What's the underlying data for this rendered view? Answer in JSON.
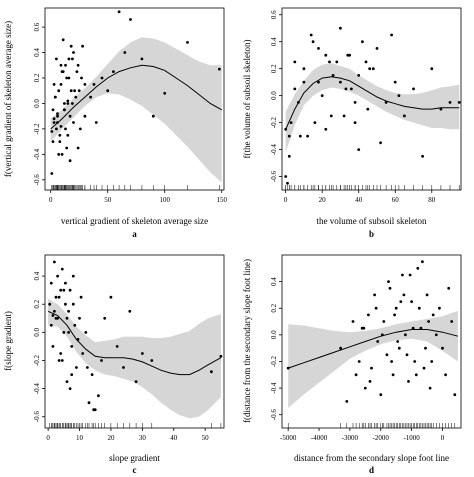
{
  "chart_data": [
    {
      "type": "line",
      "panel_label": "a",
      "xlabel": "vertical gradient of skeleton average size",
      "ylabel": "f(vertical gradient of skeleton average size)",
      "xlim": [
        -5,
        152
      ],
      "ylim": [
        -0.68,
        0.75
      ],
      "x_ticks": [
        0,
        50,
        100,
        150
      ],
      "y_ticks": [
        -0.6,
        -0.4,
        -0.2,
        0.0,
        0.2,
        0.4,
        0.6
      ],
      "tick_labels_x": [
        "0",
        "50",
        "100",
        "150"
      ],
      "tick_labels_y": [
        "-0.6",
        "-0.4",
        "-0.2",
        "0.0",
        "0.2",
        "0.4",
        "0.6"
      ],
      "smooth": {
        "x": [
          0,
          10,
          20,
          30,
          40,
          50,
          60,
          70,
          80,
          90,
          100,
          110,
          120,
          130,
          140,
          150
        ],
        "y": [
          -0.2,
          -0.12,
          -0.03,
          0.05,
          0.13,
          0.2,
          0.25,
          0.28,
          0.3,
          0.29,
          0.26,
          0.2,
          0.14,
          0.07,
          0.0,
          -0.05
        ],
        "lower": [
          -0.3,
          -0.2,
          -0.11,
          -0.02,
          0.05,
          0.08,
          0.07,
          0.03,
          -0.02,
          -0.09,
          -0.16,
          -0.25,
          -0.34,
          -0.44,
          -0.54,
          -0.62
        ],
        "upper": [
          -0.12,
          -0.05,
          0.04,
          0.12,
          0.21,
          0.31,
          0.41,
          0.48,
          0.52,
          0.51,
          0.48,
          0.43,
          0.38,
          0.33,
          0.3,
          0.3
        ]
      },
      "points": {
        "x": [
          1,
          2,
          3,
          4,
          5,
          6,
          7,
          8,
          9,
          10,
          11,
          12,
          13,
          14,
          15,
          16,
          17,
          18,
          19,
          20,
          22,
          24,
          26,
          28,
          30,
          2,
          5,
          8,
          11,
          14,
          17,
          20,
          23,
          3,
          6,
          9,
          12,
          15,
          18,
          21,
          24,
          27,
          30,
          4,
          7,
          10,
          13,
          16,
          19,
          25,
          35,
          38,
          40,
          45,
          50,
          55,
          60,
          65,
          70,
          80,
          90,
          100,
          120,
          148,
          1,
          3,
          6,
          9,
          12,
          15
        ],
        "y": [
          -0.55,
          -0.3,
          -0.15,
          0.05,
          -0.2,
          -0.1,
          0.1,
          -0.25,
          0.15,
          -0.4,
          0.25,
          -0.05,
          0.3,
          -0.35,
          0.0,
          0.2,
          -0.45,
          0.1,
          0.35,
          -0.15,
          0.05,
          0.3,
          -0.2,
          0.45,
          0.15,
          -0.05,
          0.35,
          -0.3,
          0.5,
          0.2,
          -0.1,
          0.4,
          0.25,
          0.15,
          -0.15,
          0.3,
          0.0,
          -0.25,
          0.45,
          0.1,
          -0.35,
          0.2,
          -0.1,
          0.05,
          -0.4,
          0.25,
          -0.2,
          0.35,
          0.0,
          0.1,
          0.05,
          0.15,
          -0.15,
          0.2,
          0.1,
          0.25,
          0.72,
          0.4,
          0.66,
          0.35,
          -0.1,
          0.08,
          0.48,
          0.27,
          -0.22,
          -0.12,
          -0.08,
          -0.18,
          -0.05,
          0.02
        ]
      }
    },
    {
      "type": "line",
      "panel_label": "b",
      "xlabel": "the volume of subsoil skeleton",
      "ylabel": "f(the volume of subsoil skeleton)",
      "xlim": [
        -2,
        96
      ],
      "ylim": [
        -0.7,
        0.65
      ],
      "x_ticks": [
        0,
        20,
        40,
        60,
        80
      ],
      "y_ticks": [
        -0.6,
        -0.4,
        -0.2,
        0.0,
        0.2,
        0.4,
        0.6
      ],
      "tick_labels_x": [
        "0",
        "20",
        "40",
        "60",
        "80"
      ],
      "tick_labels_y": [
        "-0.6",
        "-0.4",
        "-0.2",
        "0.0",
        "0.2",
        "0.4",
        "0.6"
      ],
      "smooth": {
        "x": [
          0,
          5,
          10,
          15,
          20,
          25,
          30,
          35,
          40,
          45,
          50,
          55,
          60,
          65,
          70,
          75,
          80,
          85,
          90,
          95
        ],
        "y": [
          -0.25,
          -0.1,
          0.02,
          0.09,
          0.13,
          0.14,
          0.13,
          0.11,
          0.07,
          0.03,
          -0.01,
          -0.04,
          -0.06,
          -0.08,
          -0.09,
          -0.1,
          -0.1,
          -0.09,
          -0.09,
          -0.09
        ],
        "lower": [
          -0.42,
          -0.22,
          -0.07,
          0.0,
          0.04,
          0.06,
          0.05,
          0.03,
          0.0,
          -0.04,
          -0.08,
          -0.12,
          -0.15,
          -0.18,
          -0.2,
          -0.22,
          -0.24,
          -0.24,
          -0.25,
          -0.25
        ],
        "upper": [
          -0.12,
          0.01,
          0.11,
          0.19,
          0.23,
          0.24,
          0.22,
          0.2,
          0.15,
          0.11,
          0.07,
          0.04,
          0.02,
          0.01,
          0.01,
          0.02,
          0.04,
          0.06,
          0.07,
          0.08
        ]
      },
      "points": {
        "x": [
          0,
          1,
          2,
          3,
          5,
          7,
          10,
          12,
          15,
          18,
          20,
          22,
          25,
          28,
          30,
          33,
          35,
          38,
          40,
          42,
          45,
          48,
          50,
          55,
          60,
          65,
          70,
          75,
          80,
          85,
          90,
          95,
          5,
          8,
          14,
          18,
          22,
          26,
          30,
          34,
          38,
          44,
          52,
          58,
          0,
          2,
          10,
          16,
          24,
          32,
          36,
          40,
          46,
          62
        ],
        "y": [
          -0.25,
          -0.65,
          -0.45,
          -0.2,
          0.25,
          -0.05,
          0.2,
          -0.3,
          0.4,
          0.1,
          0.0,
          0.3,
          -0.15,
          0.25,
          0.5,
          0.05,
          0.3,
          -0.2,
          0.15,
          0.4,
          -0.1,
          0.2,
          0.35,
          -0.05,
          0.1,
          -0.15,
          0.05,
          -0.45,
          0.2,
          -0.1,
          -0.05,
          -0.05,
          0.05,
          -0.3,
          0.45,
          0.35,
          -0.25,
          0.15,
          0.1,
          0.3,
          -0.05,
          0.25,
          -0.35,
          0.45,
          -0.6,
          -0.3,
          0.1,
          -0.2,
          0.25,
          -0.15,
          0.05,
          -0.4,
          0.2,
          0.0
        ]
      }
    },
    {
      "type": "line",
      "panel_label": "c",
      "xlabel": "slope gradient",
      "ylabel": "f(slope gradient)",
      "xlim": [
        -1,
        56
      ],
      "ylim": [
        -0.68,
        0.55
      ],
      "x_ticks": [
        0,
        10,
        20,
        30,
        40,
        50
      ],
      "y_ticks": [
        -0.6,
        -0.4,
        -0.2,
        0.0,
        0.2,
        0.4
      ],
      "tick_labels_x": [
        "0",
        "10",
        "20",
        "30",
        "40",
        "50"
      ],
      "tick_labels_y": [
        "-0.6",
        "-0.4",
        "-0.2",
        "0.0",
        "0.2",
        "0.4"
      ],
      "smooth": {
        "x": [
          0,
          3,
          6,
          9,
          12,
          15,
          18,
          21,
          24,
          27,
          30,
          33,
          36,
          39,
          42,
          45,
          48,
          51,
          55
        ],
        "y": [
          0.15,
          0.12,
          0.05,
          -0.05,
          -0.12,
          -0.17,
          -0.18,
          -0.18,
          -0.18,
          -0.19,
          -0.21,
          -0.24,
          -0.27,
          -0.29,
          -0.3,
          -0.3,
          -0.27,
          -0.23,
          -0.18
        ],
        "lower": [
          0.05,
          0.04,
          -0.03,
          -0.14,
          -0.22,
          -0.27,
          -0.3,
          -0.31,
          -0.33,
          -0.35,
          -0.39,
          -0.44,
          -0.5,
          -0.55,
          -0.59,
          -0.61,
          -0.6,
          -0.55,
          -0.46
        ],
        "upper": [
          0.24,
          0.2,
          0.13,
          0.04,
          -0.02,
          -0.07,
          -0.06,
          -0.05,
          -0.03,
          -0.03,
          -0.03,
          -0.04,
          -0.04,
          -0.03,
          -0.01,
          0.01,
          0.06,
          0.1,
          0.13
        ]
      },
      "points": {
        "x": [
          0.5,
          1,
          1.5,
          2,
          2.5,
          3,
          3.5,
          4,
          4.5,
          5,
          5.5,
          6,
          6.5,
          7,
          7.5,
          8,
          8.5,
          9,
          10,
          11,
          12,
          13,
          14,
          15,
          16,
          17,
          18,
          20,
          22,
          24,
          26,
          28,
          30,
          33,
          1,
          2,
          3,
          4,
          5,
          6,
          7,
          8,
          2.5,
          3.5,
          4.5,
          5.5,
          6.5,
          7.5,
          1.5,
          9.5,
          10.5,
          12.5,
          14.5,
          52,
          55
        ],
        "y": [
          0.2,
          0.35,
          -0.1,
          0.5,
          0.25,
          0.1,
          -0.2,
          0.3,
          0.45,
          0.0,
          0.2,
          -0.35,
          0.15,
          0.3,
          -0.1,
          0.4,
          0.05,
          -0.25,
          0.1,
          -0.15,
          0.0,
          -0.5,
          -0.3,
          -0.55,
          -0.45,
          -0.2,
          0.1,
          0.25,
          -0.1,
          -0.25,
          0.15,
          -0.35,
          -0.15,
          -0.2,
          0.05,
          0.15,
          0.4,
          -0.15,
          0.3,
          0.1,
          -0.4,
          0.2,
          0.1,
          0.25,
          -0.2,
          0.35,
          0.0,
          -0.3,
          0.12,
          -0.05,
          0.25,
          -0.25,
          -0.55,
          -0.28,
          -0.17
        ]
      }
    },
    {
      "type": "line",
      "panel_label": "d",
      "xlabel": "distance from the secondary slope foot line",
      "ylabel": "f(distance from the secondary slope foot line)",
      "xlim": [
        -5200,
        600
      ],
      "ylim": [
        -0.7,
        0.6
      ],
      "x_ticks": [
        -5000,
        -4000,
        -3000,
        -2000,
        -1000,
        0
      ],
      "y_ticks": [
        -0.6,
        -0.4,
        -0.2,
        0.0,
        0.2,
        0.4
      ],
      "tick_labels_x": [
        "-5000",
        "-4000",
        "-3000",
        "-2000",
        "-1000",
        "0"
      ],
      "tick_labels_y": [
        "-0.6",
        "-0.4",
        "-0.2",
        "0.0",
        "0.2",
        "0.4"
      ],
      "smooth": {
        "x": [
          -5000,
          -4500,
          -4000,
          -3500,
          -3000,
          -2500,
          -2000,
          -1500,
          -1000,
          -500,
          0,
          500
        ],
        "y": [
          -0.25,
          -0.21,
          -0.17,
          -0.13,
          -0.09,
          -0.05,
          -0.01,
          0.02,
          0.04,
          0.04,
          0.02,
          -0.01
        ],
        "lower": [
          -0.55,
          -0.45,
          -0.36,
          -0.27,
          -0.18,
          -0.12,
          -0.07,
          -0.04,
          -0.03,
          -0.05,
          -0.12,
          -0.2
        ],
        "upper": [
          0.08,
          0.07,
          0.05,
          0.03,
          0.02,
          0.03,
          0.05,
          0.08,
          0.1,
          0.12,
          0.14,
          0.18
        ]
      },
      "points": {
        "x": [
          -5000,
          -3300,
          -3100,
          -2900,
          -2800,
          -2700,
          -2600,
          -2500,
          -2400,
          -2300,
          -2200,
          -2100,
          -2000,
          -1900,
          -1800,
          -1700,
          -1600,
          -1500,
          -1400,
          -1300,
          -1200,
          -1100,
          -1000,
          -900,
          -800,
          -700,
          -600,
          -500,
          -400,
          -300,
          -200,
          -100,
          0,
          100,
          200,
          300,
          400,
          -1750,
          -1650,
          -1550,
          -1450,
          -1350,
          -1250,
          -1150,
          -1050,
          -950,
          -850,
          -750,
          -650,
          -550,
          -450,
          -350,
          -2550,
          -2350,
          -2150,
          -1950
        ],
        "y": [
          -0.25,
          -0.1,
          -0.5,
          0.1,
          -0.3,
          -0.2,
          0.05,
          -0.4,
          0.15,
          -0.25,
          0.3,
          -0.05,
          -0.45,
          0.1,
          -0.15,
          0.35,
          -0.3,
          0.2,
          -0.1,
          0.45,
          0.0,
          -0.35,
          0.25,
          -0.2,
          0.5,
          0.05,
          -0.25,
          0.3,
          -0.4,
          0.15,
          0.0,
          0.2,
          -0.1,
          -0.3,
          0.35,
          0.1,
          -0.45,
          0.4,
          -0.2,
          0.15,
          -0.05,
          0.25,
          0.3,
          -0.15,
          0.45,
          0.05,
          -0.3,
          0.2,
          0.55,
          -0.1,
          0.1,
          -0.2,
          0.05,
          -0.35,
          0.2,
          0.0
        ]
      }
    }
  ]
}
